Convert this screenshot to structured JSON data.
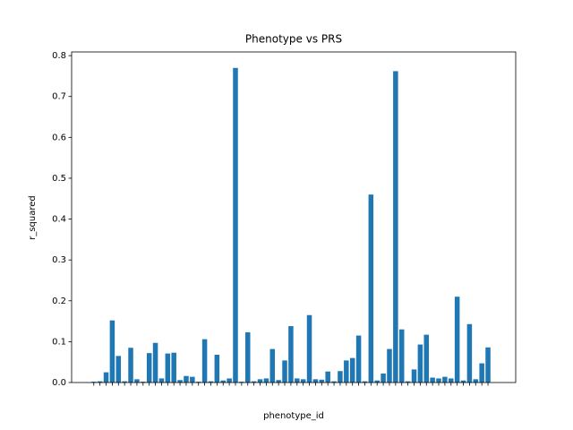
{
  "chart_data": {
    "type": "bar",
    "title": "Phenotype vs PRS",
    "xlabel": "phenotype_id",
    "ylabel": "r_squared",
    "color": "#1f77b4",
    "categories": [
      null,
      null,
      null,
      null,
      null,
      null,
      null,
      null,
      null,
      null,
      null,
      null,
      null,
      null,
      null,
      null,
      null,
      null,
      null,
      null,
      null,
      null,
      null,
      null,
      null,
      null,
      null,
      null,
      null,
      null,
      null,
      null,
      null,
      null,
      null,
      null,
      null,
      null,
      null,
      null,
      null,
      null,
      null,
      null,
      null,
      null,
      null,
      null,
      null,
      null,
      null,
      null,
      null,
      null,
      null,
      null,
      null,
      null,
      null,
      null,
      null,
      null,
      null,
      null,
      null
    ],
    "values": [
      0.002,
      0.003,
      0.025,
      0.152,
      0.065,
      0.003,
      0.085,
      0.008,
      0.002,
      0.072,
      0.097,
      0.01,
      0.071,
      0.073,
      0.006,
      0.016,
      0.014,
      0.002,
      0.106,
      0.003,
      0.068,
      0.005,
      0.01,
      0.77,
      0.002,
      0.123,
      0.003,
      0.008,
      0.01,
      0.082,
      0.006,
      0.054,
      0.138,
      0.01,
      0.008,
      0.165,
      0.008,
      0.007,
      0.027,
      0.003,
      0.028,
      0.054,
      0.06,
      0.115,
      0.003,
      0.46,
      0.005,
      0.022,
      0.082,
      0.762,
      0.13,
      0.003,
      0.032,
      0.093,
      0.117,
      0.012,
      0.01,
      0.014,
      0.01,
      0.21,
      0.005,
      0.143,
      0.008,
      0.047,
      0.086
    ],
    "ylim": [
      0,
      0.809
    ],
    "yticks": [
      {
        "value": 0,
        "label": "0.0"
      },
      {
        "value": 0.1,
        "label": "0.1"
      },
      {
        "value": 0.2,
        "label": "0.2"
      },
      {
        "value": 0.3,
        "label": "0.3"
      },
      {
        "value": 0.4,
        "label": "0.4"
      },
      {
        "value": 0.5,
        "label": "0.5"
      },
      {
        "value": 0.6,
        "label": "0.6"
      },
      {
        "value": 0.7,
        "label": "0.7"
      },
      {
        "value": 0.8,
        "label": "0.8"
      }
    ]
  }
}
